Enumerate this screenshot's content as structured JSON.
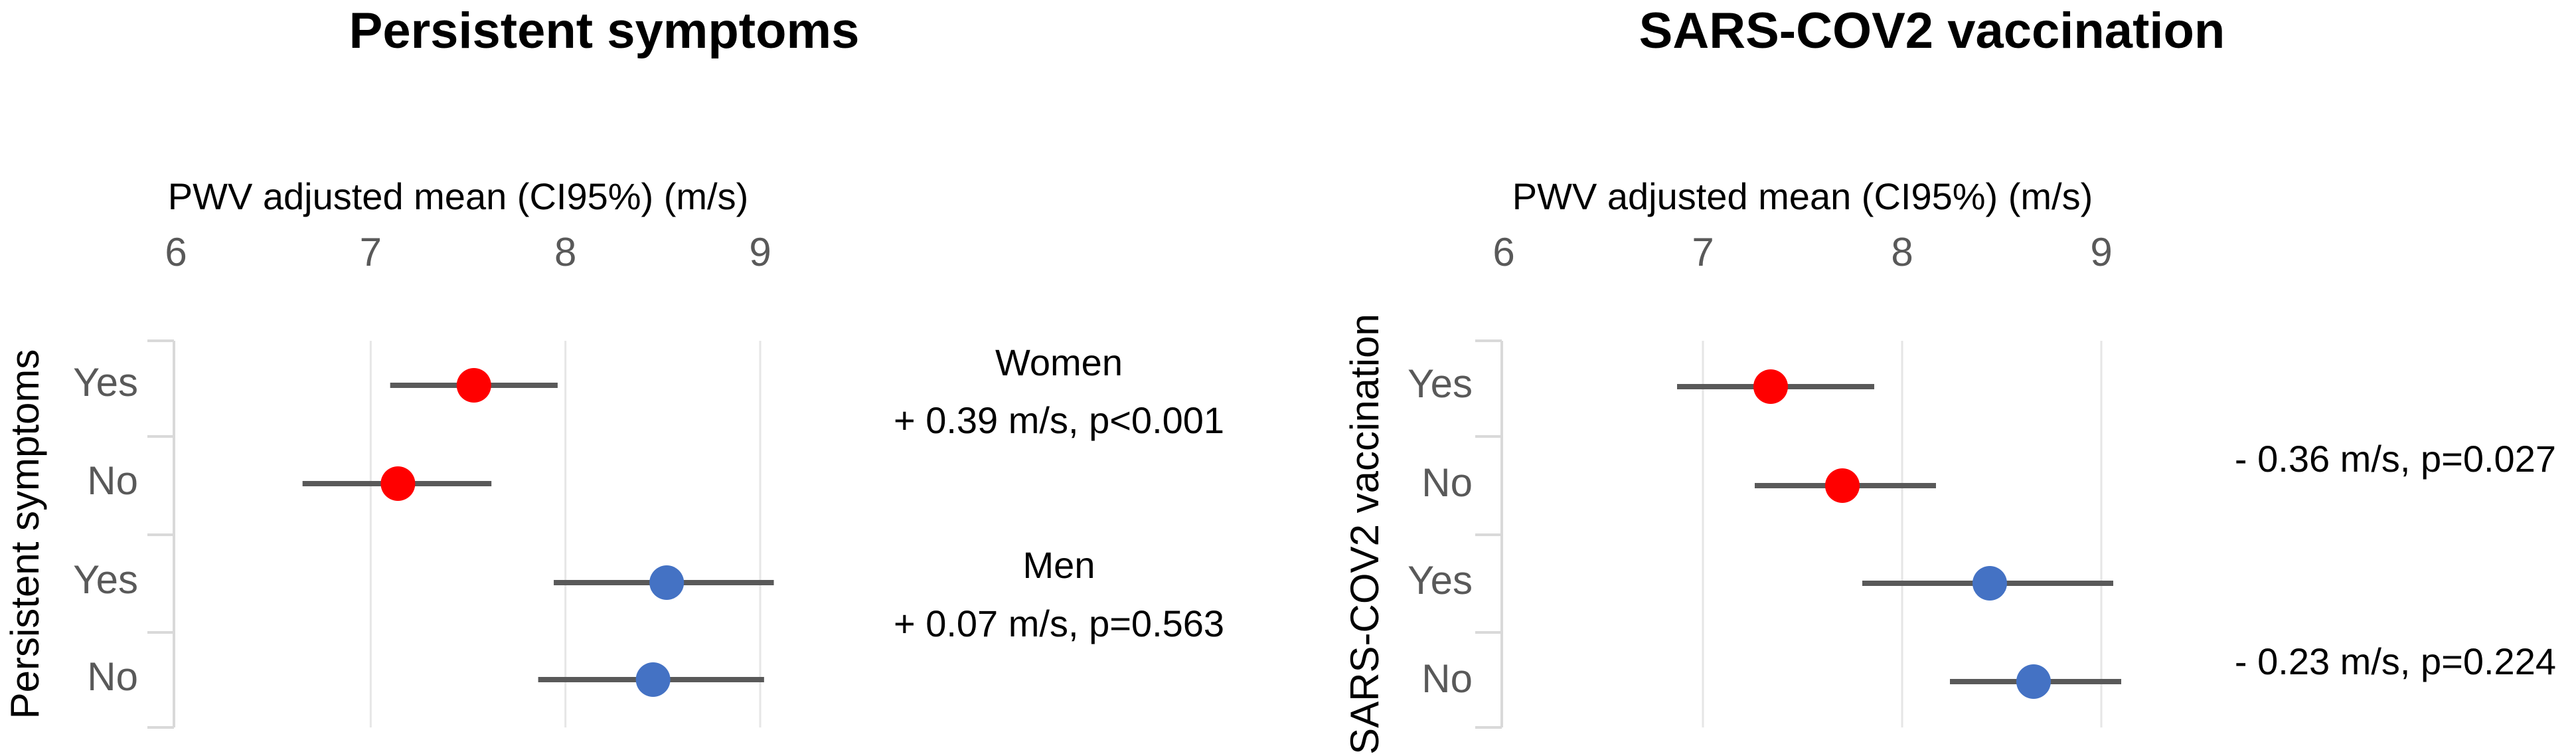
{
  "chart_data": [
    {
      "type": "forest",
      "title": "Persistent symptoms",
      "xlabel": "PWV adjusted mean (CI95%) (m/s)",
      "ylabel": "Persistent symptoms",
      "xlim": [
        6,
        9
      ],
      "xticks": [
        6,
        7,
        8,
        9
      ],
      "grid": true,
      "rows": [
        {
          "label": "Yes",
          "mean": 7.53,
          "low": 7.1,
          "high": 7.96,
          "color": "#ff0000"
        },
        {
          "label": "No",
          "mean": 7.14,
          "low": 6.65,
          "high": 7.62,
          "color": "#ff0000"
        },
        {
          "label": "Yes",
          "mean": 8.52,
          "low": 7.94,
          "high": 9.07,
          "color": "#4472c4"
        },
        {
          "label": "No",
          "mean": 8.45,
          "low": 7.86,
          "high": 9.02,
          "color": "#4472c4"
        }
      ],
      "annotations": [
        {
          "lines": [
            "Women",
            "+ 0.39 m/s, p<0.001"
          ]
        },
        {
          "lines": [
            "Men",
            "+ 0.07 m/s, p=0.563"
          ]
        }
      ]
    },
    {
      "type": "forest",
      "title": "SARS-COV2 vaccination",
      "xlabel": "PWV adjusted mean (CI95%) (m/s)",
      "ylabel": "SARS-COV2 vaccination",
      "xlim": [
        6,
        9
      ],
      "xticks": [
        6,
        7,
        8,
        9
      ],
      "grid": true,
      "rows": [
        {
          "label": "Yes",
          "mean": 7.34,
          "low": 6.87,
          "high": 7.86,
          "color": "#ff0000"
        },
        {
          "label": "No",
          "mean": 7.7,
          "low": 7.26,
          "high": 8.17,
          "color": "#ff0000"
        },
        {
          "label": "Yes",
          "mean": 8.44,
          "low": 7.8,
          "high": 9.06,
          "color": "#4472c4"
        },
        {
          "label": "No",
          "mean": 8.66,
          "low": 8.24,
          "high": 9.1,
          "color": "#4472c4"
        }
      ],
      "annotations": [
        {
          "lines": [
            "- 0.36 m/s, p=0.027"
          ]
        },
        {
          "lines": [
            "- 0.23 m/s, p=0.224"
          ]
        }
      ]
    }
  ]
}
